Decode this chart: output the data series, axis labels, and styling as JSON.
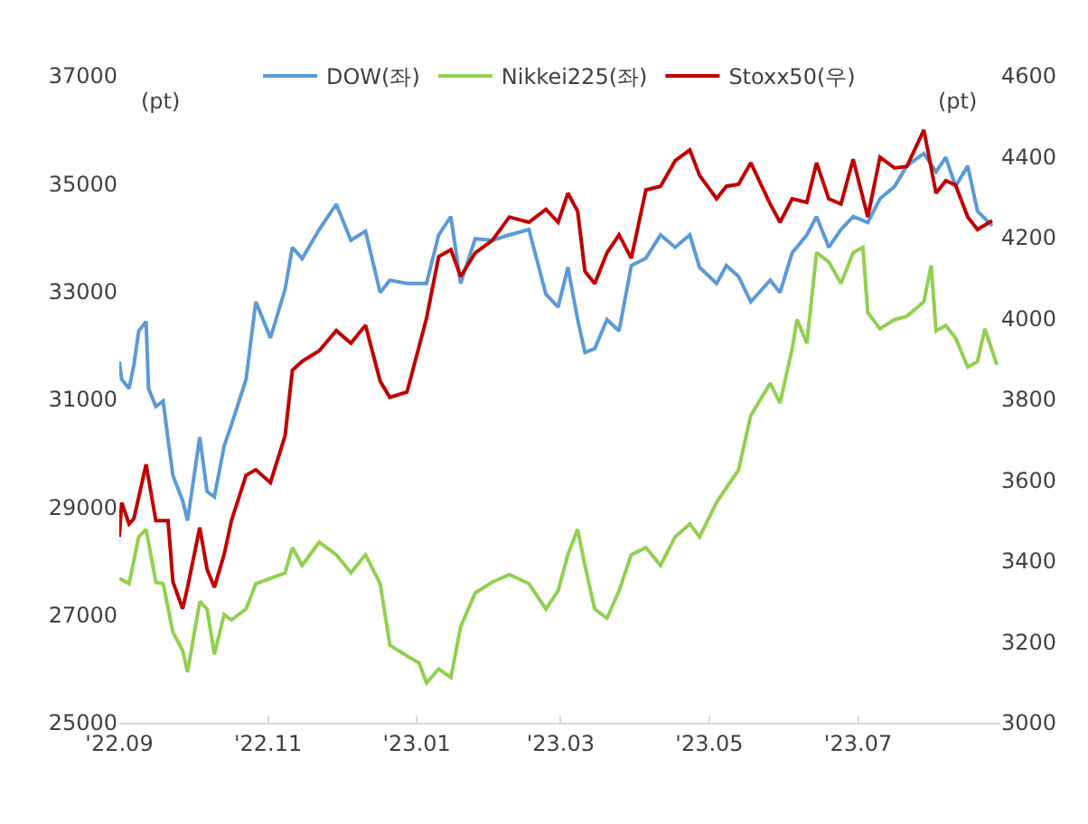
{
  "chart_data": {
    "type": "line",
    "xlim": [
      "2022-09-01",
      "2023-08-28"
    ],
    "xticks": [
      {
        "value": "2022-09-01",
        "label": "'22.09"
      },
      {
        "value": "2022-11-01",
        "label": "'22.11"
      },
      {
        "value": "2023-01-01",
        "label": "'23.01"
      },
      {
        "value": "2023-03-01",
        "label": "'23.03"
      },
      {
        "value": "2023-05-01",
        "label": "'23.05"
      },
      {
        "value": "2023-07-01",
        "label": "'23.07"
      }
    ],
    "ylim": [
      25000,
      37000
    ],
    "yticks": [
      25000,
      27000,
      29000,
      31000,
      33000,
      35000,
      37000
    ],
    "y2lim": [
      3000,
      4600
    ],
    "y2ticks": [
      3000,
      3200,
      3400,
      3600,
      3800,
      4000,
      4200,
      4400,
      4600
    ],
    "legend": "top",
    "line_style": "solid",
    "annotations": [
      "(pt)",
      "(pt)"
    ],
    "series": [
      {
        "name": "DOW(좌)",
        "color": "#5b9bd5",
        "x": [
          "2022-09-01",
          "2022-09-02",
          "2022-09-05",
          "2022-09-07",
          "2022-09-09",
          "2022-09-12",
          "2022-09-13",
          "2022-09-16",
          "2022-09-19",
          "2022-09-21",
          "2022-09-23",
          "2022-09-27",
          "2022-09-29",
          "2022-10-04",
          "2022-10-07",
          "2022-10-10",
          "2022-10-14",
          "2022-10-17",
          "2022-10-23",
          "2022-10-27",
          "2022-11-02",
          "2022-11-08",
          "2022-11-11",
          "2022-11-15",
          "2022-11-22",
          "2022-11-29",
          "2022-12-05",
          "2022-12-11",
          "2022-12-17",
          "2022-12-21",
          "2022-12-28",
          "2023-01-05",
          "2023-01-10",
          "2023-01-15",
          "2023-01-19",
          "2023-01-25",
          "2023-02-01",
          "2023-02-08",
          "2023-02-16",
          "2023-02-23",
          "2023-02-28",
          "2023-03-04",
          "2023-03-08",
          "2023-03-11",
          "2023-03-15",
          "2023-03-20",
          "2023-03-25",
          "2023-03-30",
          "2023-04-05",
          "2023-04-11",
          "2023-04-17",
          "2023-04-23",
          "2023-04-27",
          "2023-05-04",
          "2023-05-08",
          "2023-05-13",
          "2023-05-18",
          "2023-05-26",
          "2023-05-30",
          "2023-06-04",
          "2023-06-10",
          "2023-06-14",
          "2023-06-19",
          "2023-06-24",
          "2023-06-29",
          "2023-07-05",
          "2023-07-10",
          "2023-07-16",
          "2023-07-21",
          "2023-07-28",
          "2023-08-02",
          "2023-08-06",
          "2023-08-10",
          "2023-08-15",
          "2023-08-19",
          "2023-08-25"
        ],
        "values": [
          31700,
          31370,
          31200,
          31640,
          32270,
          32440,
          31200,
          30870,
          30970,
          30260,
          29590,
          29120,
          28750,
          30300,
          29290,
          29190,
          30130,
          30530,
          31370,
          32810,
          32140,
          33040,
          33820,
          33610,
          34150,
          34620,
          33950,
          34120,
          32980,
          33210,
          33150,
          33150,
          34050,
          34390,
          33150,
          33980,
          33950,
          34050,
          34150,
          32950,
          32710,
          33450,
          32480,
          31870,
          31940,
          32480,
          32270,
          33480,
          33620,
          34050,
          33820,
          34050,
          33450,
          33150,
          33480,
          33280,
          32810,
          33210,
          32980,
          33720,
          34050,
          34390,
          33820,
          34150,
          34390,
          34280,
          34720,
          34950,
          35330,
          35560,
          35220,
          35490,
          34950,
          35330,
          34490,
          34220
        ]
      },
      {
        "name": "Nikkei225(좌)",
        "color": "#92d050",
        "x": [
          "2022-09-01",
          "2022-09-05",
          "2022-09-09",
          "2022-09-12",
          "2022-09-16",
          "2022-09-19",
          "2022-09-23",
          "2022-09-27",
          "2022-09-29",
          "2022-10-04",
          "2022-10-07",
          "2022-10-10",
          "2022-10-14",
          "2022-10-17",
          "2022-10-23",
          "2022-10-27",
          "2022-11-02",
          "2022-11-08",
          "2022-11-11",
          "2022-11-15",
          "2022-11-22",
          "2022-11-29",
          "2022-12-05",
          "2022-12-11",
          "2022-12-17",
          "2022-12-21",
          "2022-12-28",
          "2023-01-02",
          "2023-01-05",
          "2023-01-10",
          "2023-01-15",
          "2023-01-19",
          "2023-01-25",
          "2023-02-01",
          "2023-02-08",
          "2023-02-16",
          "2023-02-23",
          "2023-02-28",
          "2023-03-04",
          "2023-03-08",
          "2023-03-11",
          "2023-03-15",
          "2023-03-20",
          "2023-03-25",
          "2023-03-30",
          "2023-04-05",
          "2023-04-11",
          "2023-04-17",
          "2023-04-23",
          "2023-04-27",
          "2023-05-04",
          "2023-05-08",
          "2023-05-13",
          "2023-05-18",
          "2023-05-26",
          "2023-05-30",
          "2023-06-04",
          "2023-06-06",
          "2023-06-10",
          "2023-06-14",
          "2023-06-19",
          "2023-06-24",
          "2023-06-29",
          "2023-07-03",
          "2023-07-05",
          "2023-07-10",
          "2023-07-16",
          "2023-07-21",
          "2023-07-28",
          "2023-07-31",
          "2023-08-02",
          "2023-08-06",
          "2023-08-10",
          "2023-08-15",
          "2023-08-19",
          "2023-08-22",
          "2023-08-27"
        ],
        "values": [
          27680,
          27580,
          28450,
          28590,
          27610,
          27580,
          26680,
          26340,
          25940,
          27250,
          27110,
          26270,
          27010,
          26910,
          27110,
          27580,
          27680,
          27780,
          28250,
          27920,
          28350,
          28120,
          27780,
          28120,
          27580,
          26440,
          26240,
          26110,
          25740,
          26000,
          25840,
          26780,
          27410,
          27610,
          27750,
          27580,
          27110,
          27450,
          28120,
          28590,
          27920,
          27110,
          26940,
          27450,
          28120,
          28250,
          27920,
          28450,
          28690,
          28450,
          29090,
          29360,
          29690,
          30700,
          31300,
          30930,
          31940,
          32480,
          32040,
          33720,
          33550,
          33150,
          33720,
          33820,
          32610,
          32310,
          32480,
          32540,
          32810,
          33480,
          32270,
          32370,
          32140,
          31600,
          31700,
          32310,
          31640
        ]
      },
      {
        "name": "Stoxx50(우)",
        "color": "#c00000",
        "axis": "y2",
        "x": [
          "2022-09-01",
          "2022-09-02",
          "2022-09-05",
          "2022-09-07",
          "2022-09-12",
          "2022-09-16",
          "2022-09-21",
          "2022-09-23",
          "2022-09-27",
          "2022-09-29",
          "2022-10-04",
          "2022-10-07",
          "2022-10-10",
          "2022-10-14",
          "2022-10-17",
          "2022-10-23",
          "2022-10-27",
          "2022-11-02",
          "2022-11-08",
          "2022-11-11",
          "2022-11-15",
          "2022-11-22",
          "2022-11-29",
          "2022-12-05",
          "2022-12-11",
          "2022-12-17",
          "2022-12-21",
          "2022-12-28",
          "2023-01-05",
          "2023-01-10",
          "2023-01-15",
          "2023-01-19",
          "2023-01-25",
          "2023-02-01",
          "2023-02-08",
          "2023-02-16",
          "2023-02-23",
          "2023-02-28",
          "2023-03-04",
          "2023-03-08",
          "2023-03-11",
          "2023-03-15",
          "2023-03-20",
          "2023-03-25",
          "2023-03-30",
          "2023-04-05",
          "2023-04-11",
          "2023-04-17",
          "2023-04-23",
          "2023-04-27",
          "2023-05-04",
          "2023-05-08",
          "2023-05-13",
          "2023-05-18",
          "2023-05-26",
          "2023-05-30",
          "2023-06-04",
          "2023-06-10",
          "2023-06-14",
          "2023-06-19",
          "2023-06-24",
          "2023-06-29",
          "2023-07-05",
          "2023-07-10",
          "2023-07-16",
          "2023-07-21",
          "2023-07-28",
          "2023-08-02",
          "2023-08-06",
          "2023-08-10",
          "2023-08-15",
          "2023-08-19",
          "2023-08-25"
        ],
        "values": [
          3460,
          3545,
          3492,
          3505,
          3639,
          3500,
          3500,
          3349,
          3282,
          3335,
          3483,
          3380,
          3335,
          3416,
          3500,
          3612,
          3626,
          3594,
          3710,
          3872,
          3894,
          3920,
          3970,
          3939,
          3983,
          3845,
          3805,
          3818,
          4000,
          4153,
          4170,
          4104,
          4162,
          4193,
          4251,
          4238,
          4270,
          4238,
          4310,
          4265,
          4117,
          4086,
          4162,
          4207,
          4149,
          4318,
          4327,
          4390,
          4417,
          4354,
          4296,
          4327,
          4332,
          4385,
          4283,
          4238,
          4296,
          4287,
          4385,
          4296,
          4283,
          4394,
          4251,
          4399,
          4372,
          4376,
          4466,
          4310,
          4341,
          4330,
          4251,
          4220,
          4242
        ]
      }
    ]
  }
}
